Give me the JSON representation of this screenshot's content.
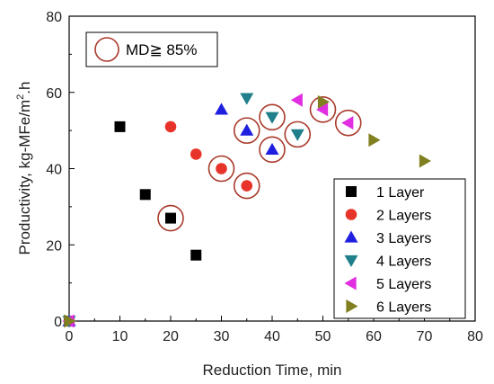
{
  "chart_data": {
    "type": "scatter",
    "xlabel": "Reduction Time, min",
    "ylabel": "Productivity, kg-MFe/m",
    "ylabel_sup": "2",
    "ylabel_suffix": ".h",
    "xlim": [
      0,
      80
    ],
    "ylim": [
      0,
      80
    ],
    "xticks": [
      0,
      10,
      20,
      30,
      40,
      50,
      60,
      70,
      80
    ],
    "yticks": [
      0,
      20,
      40,
      60,
      80
    ],
    "grid": false,
    "legend_position": "bottom-right",
    "annotation": {
      "label": "MD≧ 85%",
      "marker": "open-circle",
      "color": "#a83a2a",
      "position": "top-left"
    },
    "series": [
      {
        "name": "1 Layer",
        "marker": "square",
        "color": "#000000",
        "points": [
          {
            "x": 0,
            "y": 0,
            "md": false
          },
          {
            "x": 10,
            "y": 51,
            "md": false
          },
          {
            "x": 15,
            "y": 33.2,
            "md": false
          },
          {
            "x": 20,
            "y": 27,
            "md": true
          },
          {
            "x": 25,
            "y": 17.3,
            "md": false
          }
        ]
      },
      {
        "name": "2 Layers",
        "marker": "circle",
        "color": "#e8332a",
        "points": [
          {
            "x": 0,
            "y": 0,
            "md": false
          },
          {
            "x": 20,
            "y": 51,
            "md": false
          },
          {
            "x": 25,
            "y": 43.8,
            "md": false
          },
          {
            "x": 30,
            "y": 40,
            "md": true
          },
          {
            "x": 35,
            "y": 35.5,
            "md": true
          }
        ]
      },
      {
        "name": "3 Layers",
        "marker": "triangle-up",
        "color": "#1f1fe0",
        "points": [
          {
            "x": 0,
            "y": 0,
            "md": false
          },
          {
            "x": 30,
            "y": 55.5,
            "md": false
          },
          {
            "x": 35,
            "y": 50,
            "md": true
          },
          {
            "x": 40,
            "y": 45,
            "md": true
          }
        ]
      },
      {
        "name": "4 Layers",
        "marker": "triangle-down",
        "color": "#1f7f8a",
        "points": [
          {
            "x": 0,
            "y": 0,
            "md": false
          },
          {
            "x": 35,
            "y": 58.5,
            "md": false
          },
          {
            "x": 40,
            "y": 53.5,
            "md": true
          },
          {
            "x": 45,
            "y": 49,
            "md": true
          }
        ]
      },
      {
        "name": "5 Layers",
        "marker": "triangle-left",
        "color": "#e02ee0",
        "points": [
          {
            "x": 0,
            "y": 0,
            "md": false
          },
          {
            "x": 45,
            "y": 58,
            "md": false
          },
          {
            "x": 50,
            "y": 55.5,
            "md": true
          },
          {
            "x": 55,
            "y": 52,
            "md": true
          }
        ]
      },
      {
        "name": "6 Layers",
        "marker": "triangle-right",
        "color": "#808020",
        "points": [
          {
            "x": 0,
            "y": 0,
            "md": false
          },
          {
            "x": 50,
            "y": 57.5,
            "md": false
          },
          {
            "x": 60,
            "y": 47.5,
            "md": false
          },
          {
            "x": 70,
            "y": 42,
            "md": false
          }
        ]
      }
    ]
  }
}
